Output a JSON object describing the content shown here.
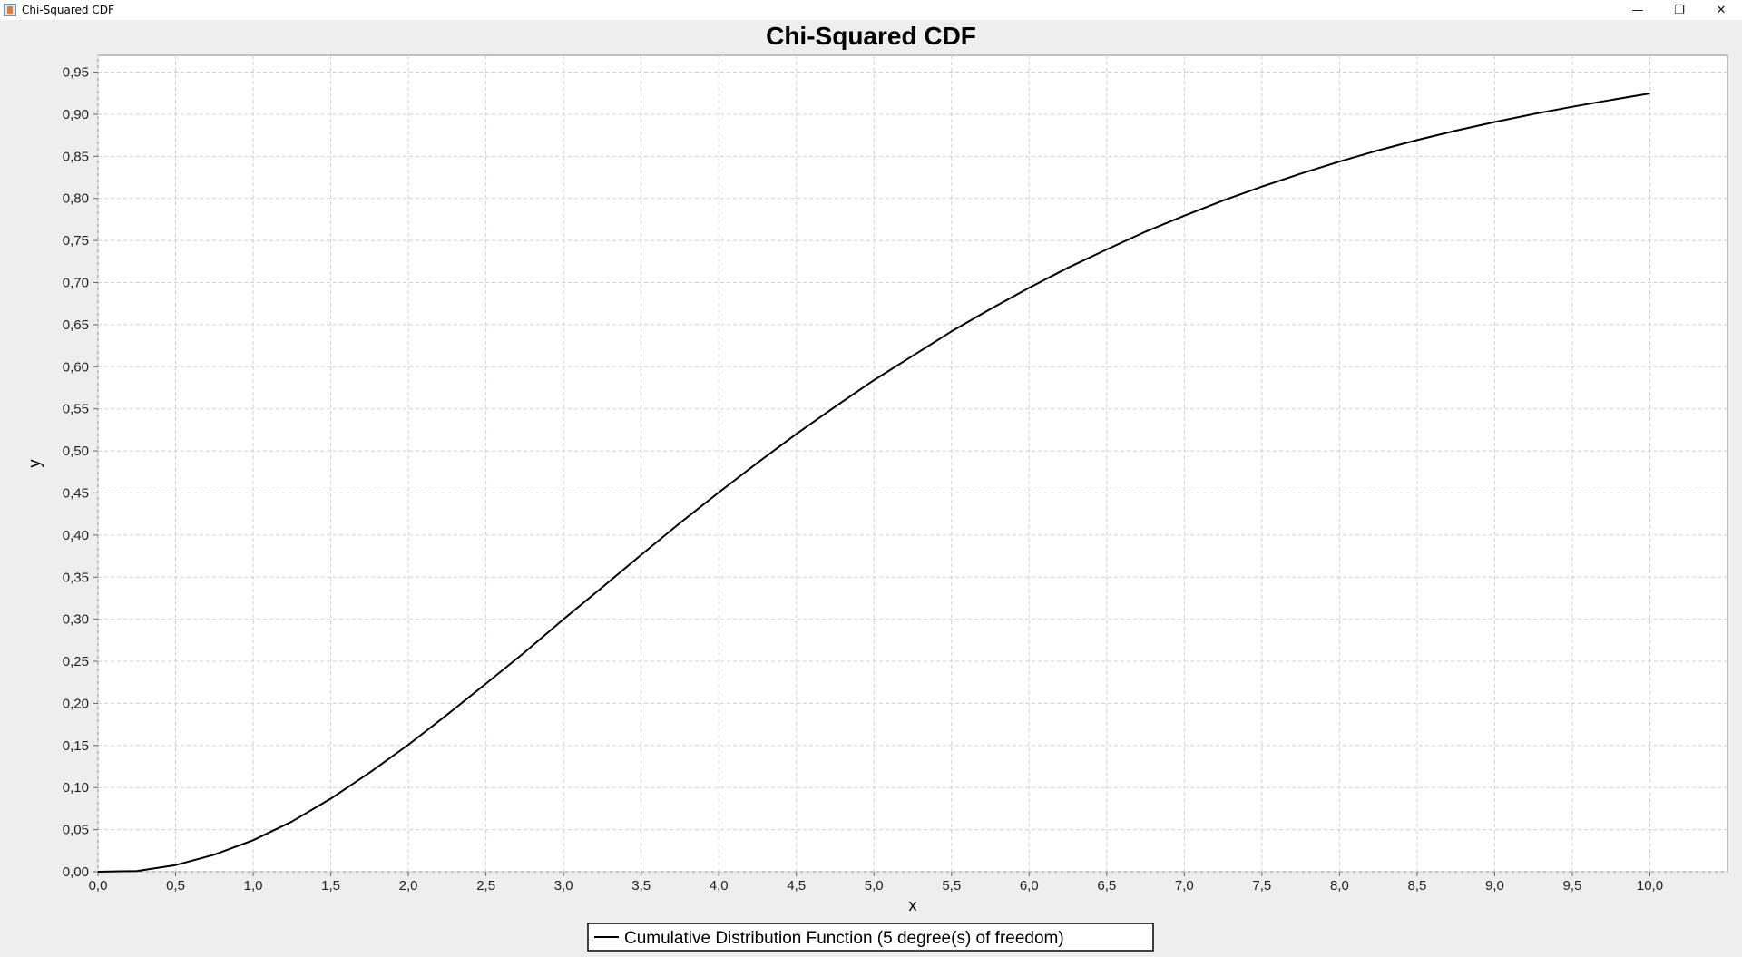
{
  "window": {
    "title": "Chi-Squared CDF",
    "controls": [
      {
        "name": "minimize-button",
        "icon": "minimize-icon",
        "glyph": "—"
      },
      {
        "name": "restore-button",
        "icon": "restore-icon",
        "glyph": "❐"
      },
      {
        "name": "close-button",
        "icon": "close-icon",
        "glyph": "✕"
      }
    ]
  },
  "chart_data": {
    "type": "line",
    "title": "Chi-Squared CDF",
    "xlabel": "x",
    "ylabel": "y",
    "xlim": [
      0.0,
      10.5
    ],
    "ylim": [
      0.0,
      0.97
    ],
    "x_ticks": [
      "0,0",
      "0,5",
      "1,0",
      "1,5",
      "2,0",
      "2,5",
      "3,0",
      "3,5",
      "4,0",
      "4,5",
      "5,0",
      "5,5",
      "6,0",
      "6,5",
      "7,0",
      "7,5",
      "8,0",
      "8,5",
      "9,0",
      "9,5",
      "10,0"
    ],
    "y_ticks": [
      "0,00",
      "0,05",
      "0,10",
      "0,15",
      "0,20",
      "0,25",
      "0,30",
      "0,35",
      "0,40",
      "0,45",
      "0,50",
      "0,55",
      "0,60",
      "0,65",
      "0,70",
      "0,75",
      "0,80",
      "0,85",
      "0,90",
      "0,95"
    ],
    "grid": true,
    "legend_position": "bottom",
    "series": [
      {
        "name": "Cumulative Distribution Function (5 degree(s) of freedom)",
        "color": "#000000",
        "x": [
          0.0,
          0.25,
          0.5,
          0.75,
          1.0,
          1.25,
          1.5,
          1.75,
          2.0,
          2.25,
          2.5,
          2.75,
          3.0,
          3.25,
          3.5,
          3.75,
          4.0,
          4.25,
          4.5,
          4.75,
          5.0,
          5.25,
          5.5,
          5.75,
          6.0,
          6.25,
          6.5,
          6.75,
          7.0,
          7.25,
          7.5,
          7.75,
          8.0,
          8.25,
          8.5,
          8.75,
          9.0,
          9.25,
          9.5,
          9.75,
          10.0
        ],
        "y": [
          0.0,
          0.0009,
          0.0079,
          0.0203,
          0.0374,
          0.0596,
          0.0869,
          0.1177,
          0.1509,
          0.1867,
          0.2235,
          0.2608,
          0.3,
          0.338,
          0.3766,
          0.4143,
          0.4506,
          0.486,
          0.5201,
          0.5526,
          0.5841,
          0.613,
          0.642,
          0.6684,
          0.6938,
          0.7176,
          0.7394,
          0.7605,
          0.7794,
          0.7974,
          0.814,
          0.8295,
          0.8438,
          0.8572,
          0.8693,
          0.8805,
          0.8908,
          0.9003,
          0.9089,
          0.917,
          0.9247
        ]
      }
    ]
  }
}
